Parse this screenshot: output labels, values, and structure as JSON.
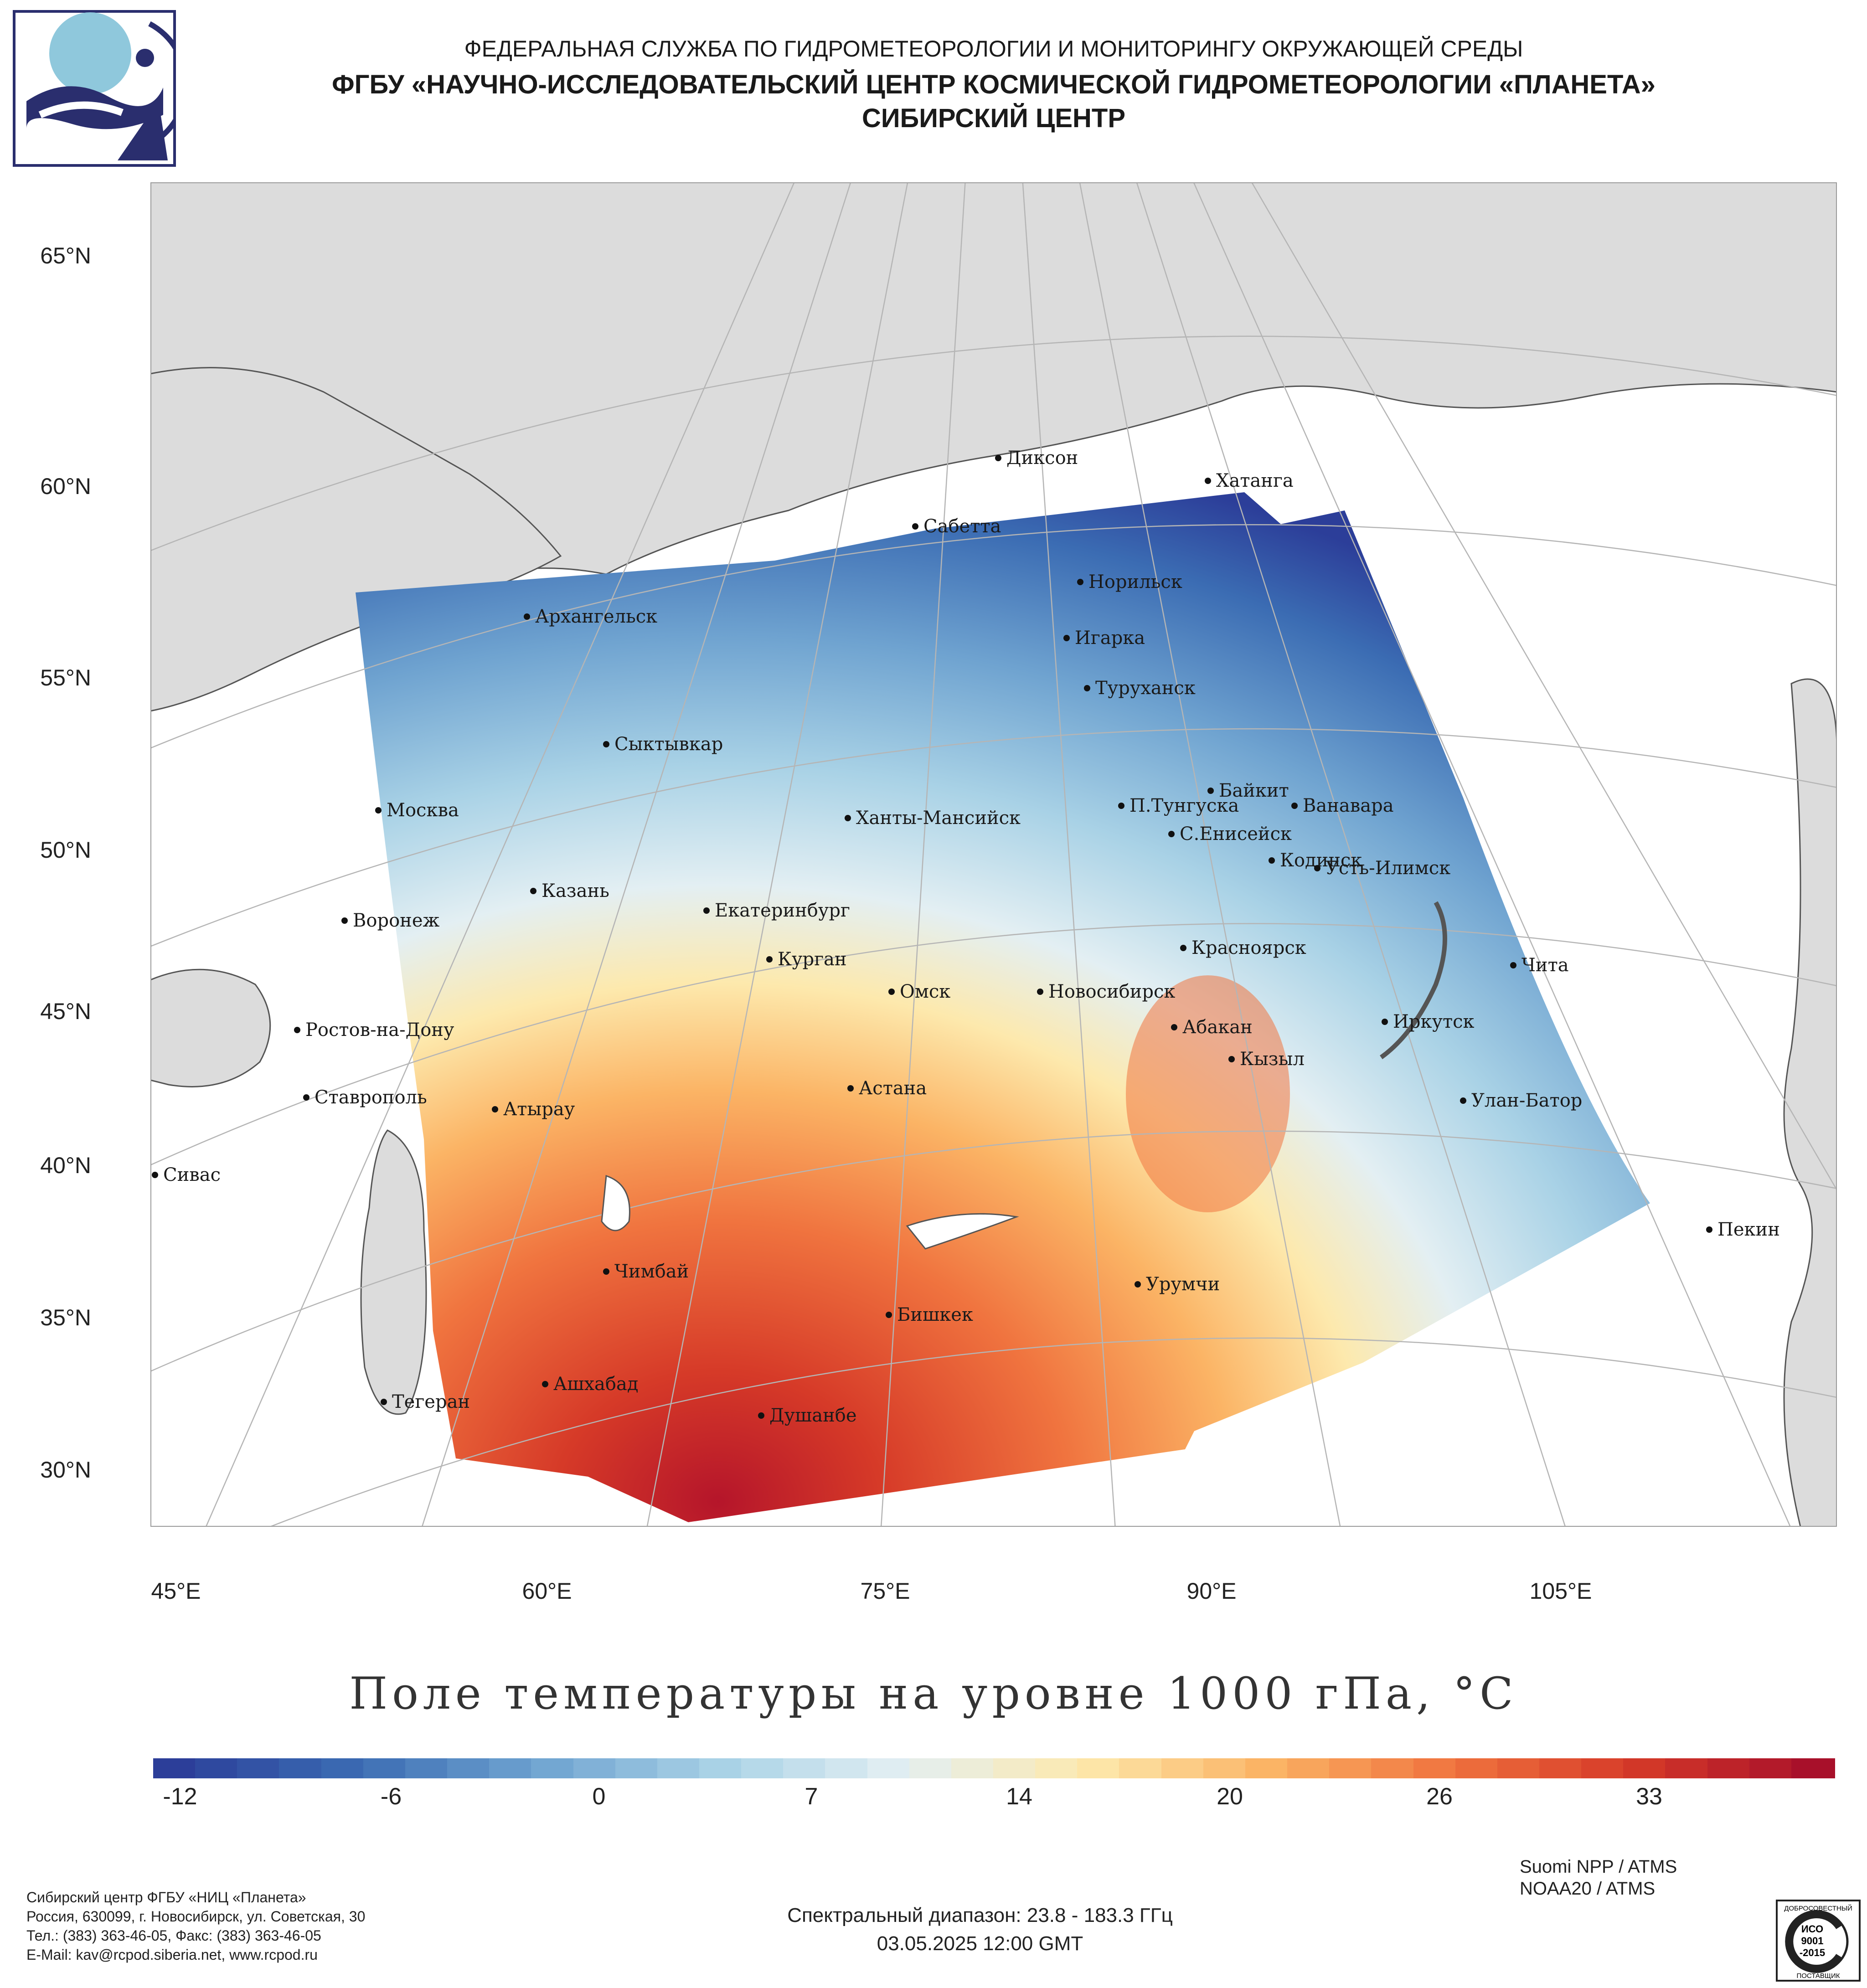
{
  "header": {
    "line1": "ФЕДЕРАЛЬНАЯ СЛУЖБА ПО ГИДРОМЕТЕОРОЛОГИИ И МОНИТОРИНГУ ОКРУЖАЮЩЕЙ СРЕДЫ",
    "line2": "ФГБУ «НАУЧНО-ИССЛЕДОВАТЕЛЬСКИЙ ЦЕНТР КОСМИЧЕСКОЙ ГИДРОМЕТЕОРОЛОГИИ «ПЛАНЕТА»",
    "line3": "СИБИРСКИЙ ЦЕНТР"
  },
  "map": {
    "lat_labels": [
      "65°N",
      "60°N",
      "55°N",
      "50°N",
      "45°N",
      "40°N",
      "35°N",
      "30°N"
    ],
    "lon_labels": [
      "45°E",
      "60°E",
      "75°E",
      "90°E",
      "105°E"
    ],
    "cities": [
      "Диксон",
      "Хатанга",
      "Сабетта",
      "Норильск",
      "Игарка",
      "Туруханск",
      "Архангельск",
      "Сыктывкар",
      "Москва",
      "Ханты-Мансийск",
      "Байкит",
      "П.Тунгуска",
      "Ванавара",
      "С.Енисейск",
      "Казань",
      "Кодинск",
      "Усть-Илимск",
      "Екатеринбург",
      "Воронеж",
      "Курган",
      "Красноярск",
      "Чита",
      "Омск",
      "Новосибирск",
      "Ростов-на-Дону",
      "Иркутск",
      "Абакан",
      "Кызыл",
      "Астана",
      "Ставрополь",
      "Улан-Батор",
      "Атырау",
      "Сивас",
      "Пекин",
      "Чимбай",
      "Урумчи",
      "Бишкек",
      "Ашхабад",
      "Тегеран",
      "Душанбе"
    ],
    "colors": {
      "land": "#dcdcdc",
      "sea": "#ffffff",
      "border": "#555555",
      "grid": "#b5b5b5"
    }
  },
  "title": "Поле температуры на уровне 1000 гПа, °C",
  "colorbar": {
    "ticks": [
      "-12",
      "-6",
      "0",
      "7",
      "14",
      "20",
      "26",
      "33"
    ],
    "min": -15,
    "max": 36,
    "colors": [
      "#2c3e99",
      "#3b6cb3",
      "#6fa3d0",
      "#a9d2e6",
      "#e3eff3",
      "#fde9ad",
      "#fbb465",
      "#f0743f",
      "#d63a28",
      "#a8102a"
    ]
  },
  "footer": {
    "org_lines": [
      "Сибирский центр ФГБУ «НИЦ «Планета»",
      "Россия, 630099, г. Новосибирск, ул. Советская, 30",
      "Тел.: (383) 363-46-05, Факс: (383) 363-46-05",
      "E-Mail: kav@rcpod.siberia.net, www.rcpod.ru"
    ],
    "spectral": "Спектральный диапазон: 23.8 - 183.3 ГГц",
    "datetime": "03.05.2025 12:00 GMT",
    "satellites": [
      "Suomi NPP / ATMS",
      "NOAA20 / ATMS"
    ],
    "iso_lines": [
      "ДОБРОСОВЕСТНЫЙ",
      "ИСО",
      "9001",
      "-2015",
      "ПОСТАВЩИК"
    ]
  }
}
